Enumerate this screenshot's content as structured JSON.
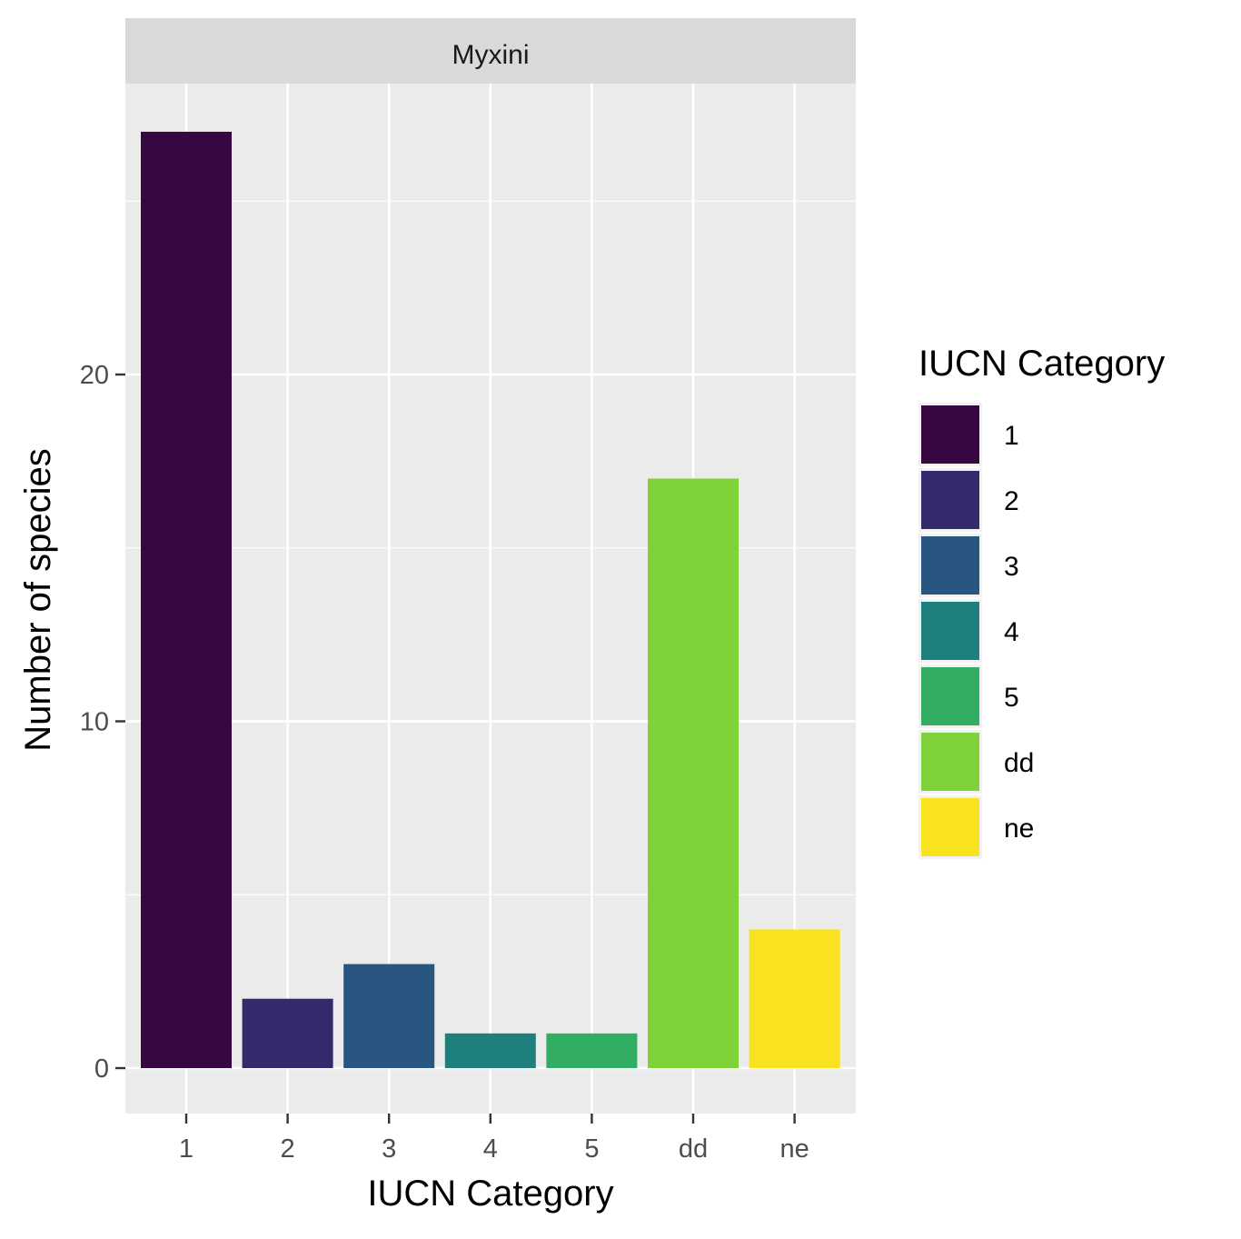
{
  "chart_data": {
    "type": "bar",
    "facet_label": "Myxini",
    "categories": [
      "1",
      "2",
      "3",
      "4",
      "5",
      "dd",
      "ne"
    ],
    "values": [
      27,
      2,
      3,
      1,
      1,
      17,
      4
    ],
    "colors": [
      "#360740",
      "#342A6B",
      "#285680",
      "#1F7F7D",
      "#31AE64",
      "#80D23A",
      "#F9E21F"
    ],
    "xlabel": "IUCN Category",
    "ylabel": "Number of species",
    "ylim": [
      -1.3,
      28.4
    ],
    "yticks": [
      0,
      10,
      20
    ],
    "ytick_labels": [
      "0",
      "10",
      "20"
    ],
    "grid": true,
    "legend": {
      "title": "IUCN Category",
      "placement": "right",
      "items": [
        {
          "label": "1",
          "color": "#360740"
        },
        {
          "label": "2",
          "color": "#342A6B"
        },
        {
          "label": "3",
          "color": "#285680"
        },
        {
          "label": "4",
          "color": "#1F7F7D"
        },
        {
          "label": "5",
          "color": "#31AE64"
        },
        {
          "label": "dd",
          "color": "#80D23A"
        },
        {
          "label": "ne",
          "color": "#F9E21F"
        }
      ]
    }
  }
}
